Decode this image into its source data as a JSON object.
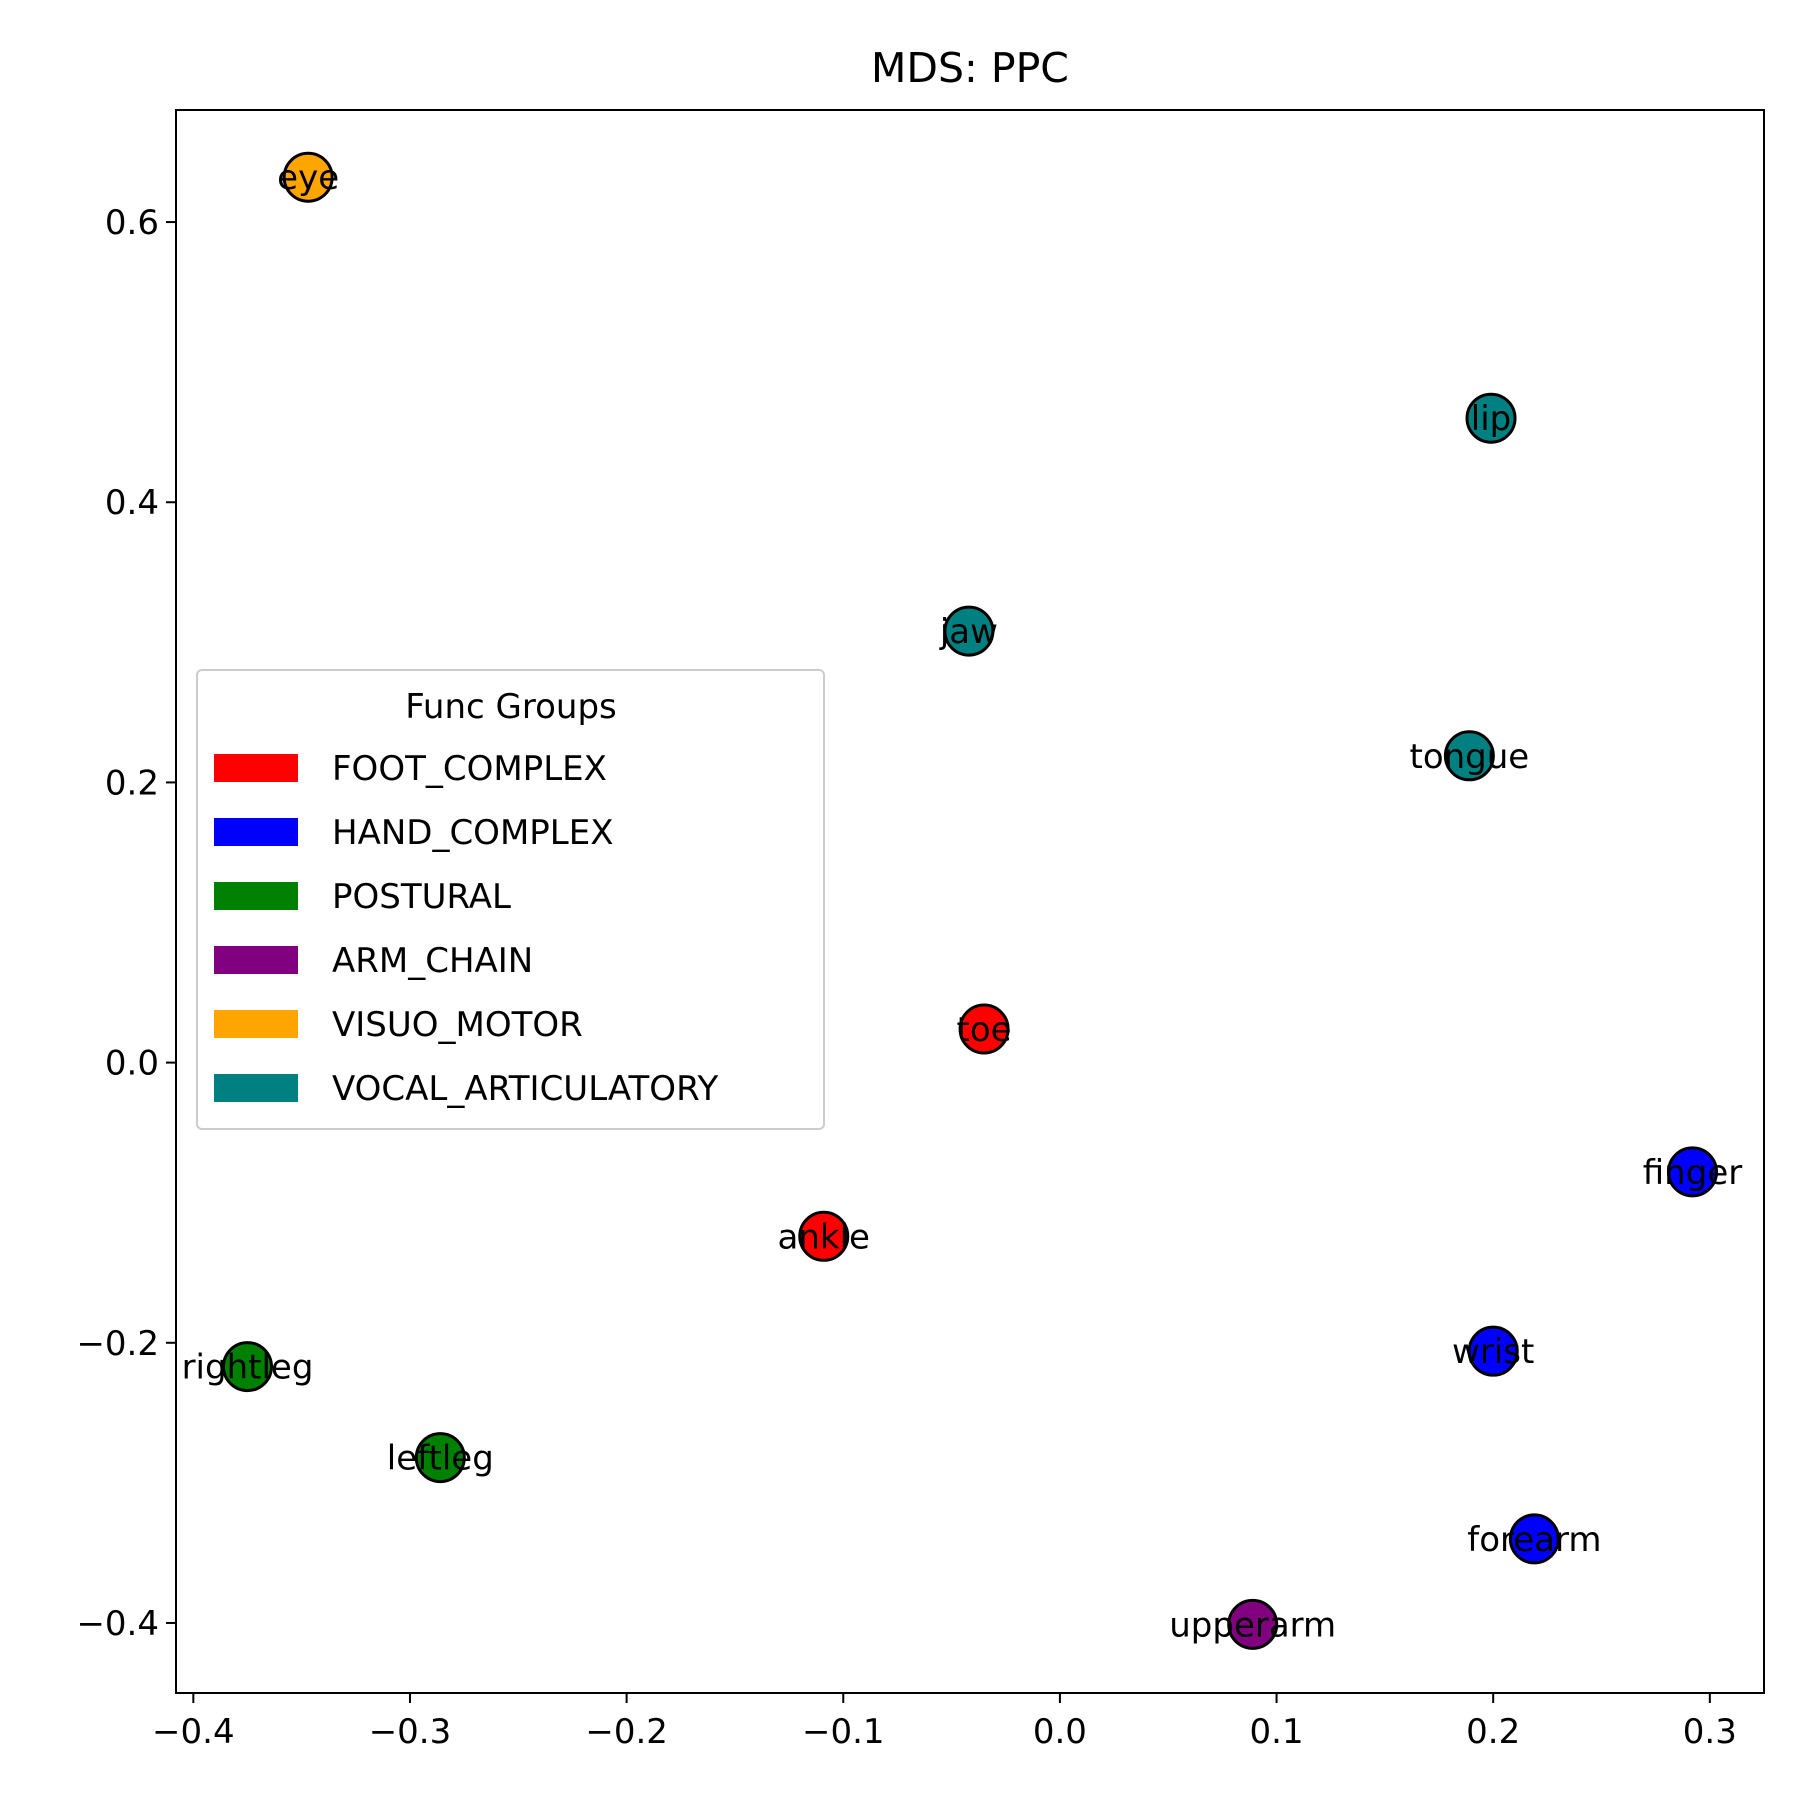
{
  "chart_data": {
    "type": "scatter",
    "title": "MDS: PPC",
    "xlabel": "",
    "ylabel": "",
    "xlim": [
      -0.408,
      0.325
    ],
    "ylim": [
      -0.45,
      0.68
    ],
    "xticks": [
      -0.4,
      -0.3,
      -0.2,
      -0.1,
      0.0,
      0.1,
      0.2,
      0.3
    ],
    "xtick_labels": [
      "−0.4",
      "−0.3",
      "−0.2",
      "−0.1",
      "0.0",
      "0.1",
      "0.2",
      "0.3"
    ],
    "yticks": [
      -0.4,
      -0.2,
      0.0,
      0.2,
      0.4,
      0.6
    ],
    "ytick_labels": [
      "−0.4",
      "−0.2",
      "0.0",
      "0.2",
      "0.4",
      "0.6"
    ],
    "grid": false,
    "legend": {
      "title": "Func Groups",
      "placement": "center-left",
      "entries": [
        {
          "label": "FOOT_COMPLEX",
          "color": "#ff0000"
        },
        {
          "label": "HAND_COMPLEX",
          "color": "#0000ff"
        },
        {
          "label": "POSTURAL",
          "color": "#008000"
        },
        {
          "label": "ARM_CHAIN",
          "color": "#800080"
        },
        {
          "label": "VISUO_MOTOR",
          "color": "#ffa500"
        },
        {
          "label": "VOCAL_ARTICULATORY",
          "color": "#008080"
        }
      ]
    },
    "points": [
      {
        "label": "eye",
        "x": -0.347,
        "y": 0.632,
        "group": "VISUO_MOTOR"
      },
      {
        "label": "lip",
        "x": 0.199,
        "y": 0.46,
        "group": "VOCAL_ARTICULATORY"
      },
      {
        "label": "jaw",
        "x": -0.042,
        "y": 0.308,
        "group": "VOCAL_ARTICULATORY"
      },
      {
        "label": "tongue",
        "x": 0.189,
        "y": 0.219,
        "group": "VOCAL_ARTICULATORY"
      },
      {
        "label": "toe",
        "x": -0.035,
        "y": 0.024,
        "group": "FOOT_COMPLEX"
      },
      {
        "label": "finger",
        "x": 0.292,
        "y": -0.078,
        "group": "HAND_COMPLEX"
      },
      {
        "label": "ankle",
        "x": -0.109,
        "y": -0.124,
        "group": "FOOT_COMPLEX"
      },
      {
        "label": "wrist",
        "x": 0.2,
        "y": -0.206,
        "group": "HAND_COMPLEX"
      },
      {
        "label": "rightleg",
        "x": -0.375,
        "y": -0.217,
        "group": "POSTURAL"
      },
      {
        "label": "leftleg",
        "x": -0.286,
        "y": -0.282,
        "group": "POSTURAL"
      },
      {
        "label": "forearm",
        "x": 0.219,
        "y": -0.34,
        "group": "HAND_COMPLEX"
      },
      {
        "label": "upperarm",
        "x": 0.089,
        "y": -0.401,
        "group": "ARM_CHAIN"
      }
    ]
  }
}
